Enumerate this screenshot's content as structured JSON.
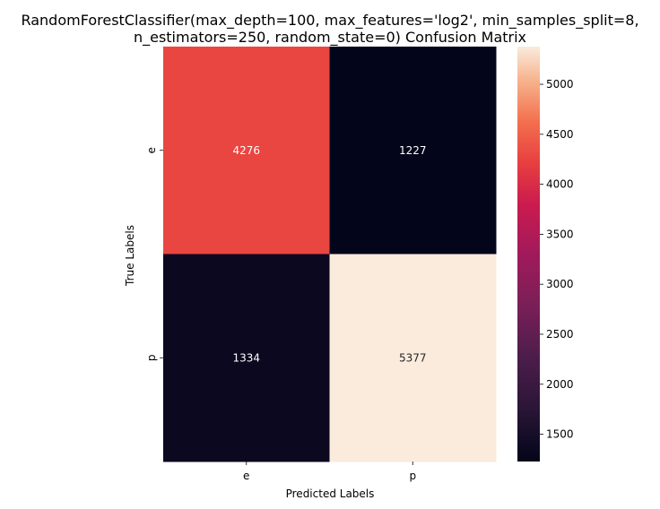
{
  "chart_data": {
    "type": "heatmap",
    "title_lines": [
      "RandomForestClassifier(max_depth=100, max_features='log2', min_samples_split=8,",
      "n_estimators=250, random_state=0) Confusion Matrix"
    ],
    "xlabel": "Predicted Labels",
    "ylabel": "True Labels",
    "x_categories": [
      "e",
      "p"
    ],
    "y_categories": [
      "e",
      "p"
    ],
    "values": [
      [
        4276,
        1227
      ],
      [
        1334,
        5377
      ]
    ],
    "colormap": "rocket",
    "colorbar": {
      "vmin": 1227,
      "vmax": 5377,
      "ticks": [
        1500,
        2000,
        2500,
        3000,
        3500,
        4000,
        4500,
        5000
      ],
      "tick_labels": [
        "1500",
        "2000",
        "2500",
        "3000",
        "3500",
        "4000",
        "4500",
        "5000"
      ]
    },
    "grid": false,
    "legend": "colorbar-right"
  }
}
